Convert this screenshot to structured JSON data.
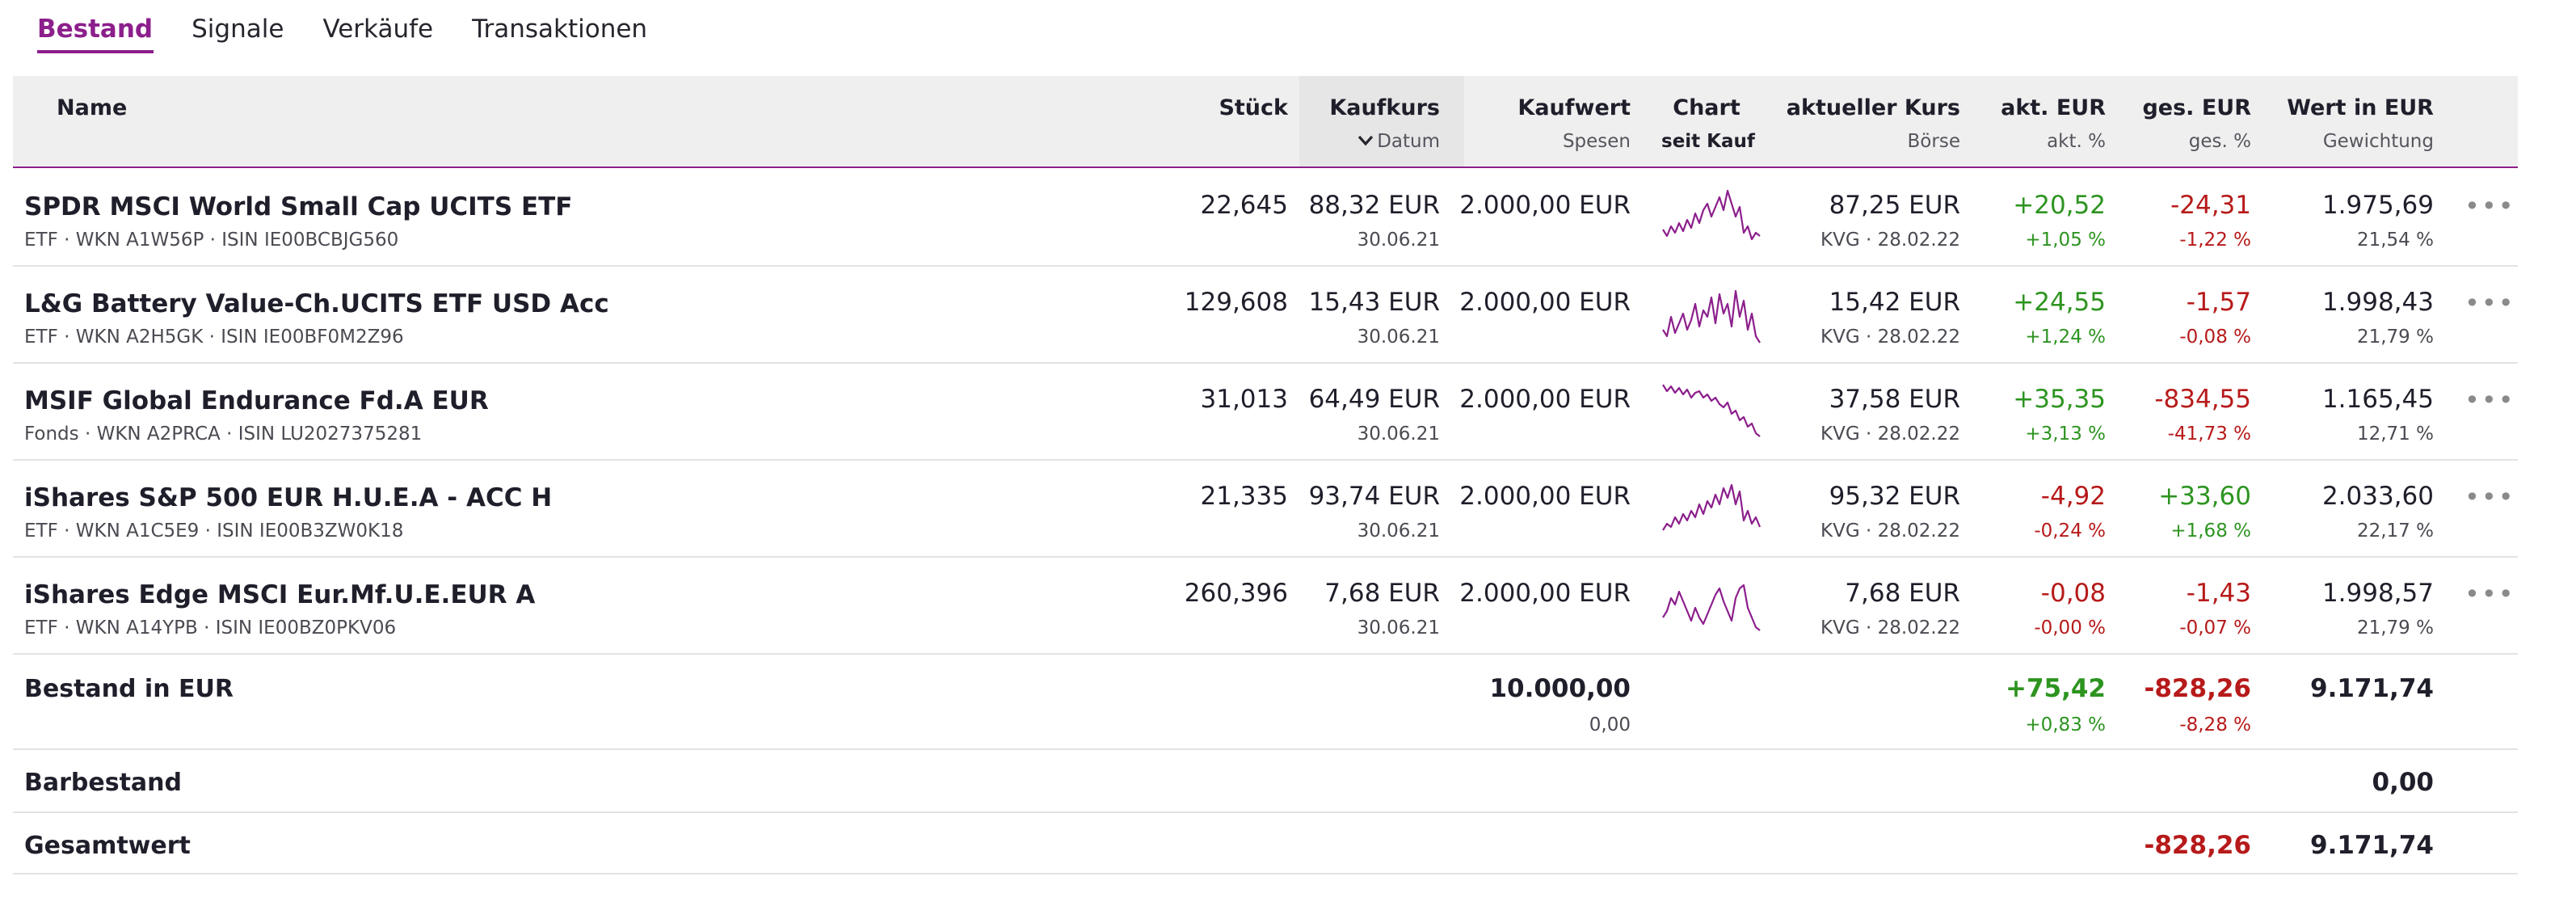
{
  "tabs": [
    {
      "label": "Bestand",
      "active": true
    },
    {
      "label": "Signale",
      "active": false
    },
    {
      "label": "Verkäufe",
      "active": false
    },
    {
      "label": "Transaktionen",
      "active": false
    }
  ],
  "header": {
    "name": "Name",
    "stueck": "Stück",
    "kaufkurs": "Kaufkurs",
    "datum": "Datum",
    "kaufwert": "Kaufwert",
    "spesen": "Spesen",
    "chart": "Chart",
    "seit_kauf": "seit Kauf",
    "aktueller_kurs": "aktueller Kurs",
    "boerse": "Börse",
    "akt_eur": "akt. EUR",
    "akt_pct": "akt. %",
    "ges_eur": "ges. EUR",
    "ges_pct": "ges. %",
    "wert_eur": "Wert in EUR",
    "gewichtung": "Gewichtung"
  },
  "rows": [
    {
      "name": "SPDR MSCI World Small Cap UCITS ETF",
      "sub": "ETF · WKN A1W56P · ISIN IE00BCBJG560",
      "stueck": "22,645",
      "kaufkurs": "88,32 EUR",
      "datum": "30.06.21",
      "kaufwert": "2.000,00 EUR",
      "kurs": "87,25 EUR",
      "boerse": "KVG · 28.02.22",
      "akt_eur": "+20,52",
      "akt_pct": "+1,05 %",
      "ges_eur": "-24,31",
      "ges_pct": "-1,22 %",
      "wert": "1.975,69",
      "gewichtung": "21,54 %",
      "akt_sign": "pos",
      "ges_sign": "neg",
      "spark": [
        28,
        32,
        26,
        30,
        24,
        29,
        22,
        27,
        18,
        24,
        16,
        12,
        20,
        14,
        8,
        16,
        4,
        12,
        20,
        14,
        30,
        26,
        34,
        30,
        32
      ]
    },
    {
      "name": "L&G Battery Value-Ch.UCITS ETF USD Acc",
      "sub": "ETF · WKN A2H5GK · ISIN IE00BF0M2Z96",
      "stueck": "129,608",
      "kaufkurs": "15,43 EUR",
      "datum": "30.06.21",
      "kaufwert": "2.000,00 EUR",
      "kurs": "15,42 EUR",
      "boerse": "KVG · 28.02.22",
      "akt_eur": "+24,55",
      "akt_pct": "+1,24 %",
      "ges_eur": "-1,57",
      "ges_pct": "-0,08 %",
      "wert": "1.998,43",
      "gewichtung": "21,79 %",
      "akt_sign": "pos",
      "ges_sign": "neg",
      "spark": [
        30,
        34,
        22,
        32,
        26,
        20,
        30,
        24,
        14,
        28,
        18,
        22,
        10,
        26,
        8,
        20,
        14,
        28,
        6,
        22,
        12,
        30,
        20,
        34,
        38
      ]
    },
    {
      "name": "MSIF Global Endurance Fd.A EUR",
      "sub": "Fonds · WKN A2PRCA · ISIN LU2027375281",
      "stueck": "31,013",
      "kaufkurs": "64,49 EUR",
      "datum": "30.06.21",
      "kaufwert": "2.000,00 EUR",
      "kurs": "37,58 EUR",
      "boerse": "KVG · 28.02.22",
      "akt_eur": "+35,35",
      "akt_pct": "+3,13 %",
      "ges_eur": "-834,55",
      "ges_pct": "-41,73 %",
      "wert": "1.165,45",
      "gewichtung": "12,71 %",
      "akt_sign": "pos",
      "ges_sign": "neg",
      "spark": [
        4,
        8,
        5,
        9,
        6,
        10,
        7,
        12,
        9,
        8,
        12,
        10,
        14,
        12,
        16,
        18,
        15,
        22,
        20,
        26,
        24,
        30,
        28,
        34,
        36
      ]
    },
    {
      "name": "iShares S&P 500 EUR H.U.E.A - ACC H",
      "sub": "ETF · WKN A1C5E9 · ISIN IE00B3ZW0K18",
      "stueck": "21,335",
      "kaufkurs": "93,74 EUR",
      "datum": "30.06.21",
      "kaufwert": "2.000,00 EUR",
      "kurs": "95,32 EUR",
      "boerse": "KVG · 28.02.22",
      "akt_eur": "-4,92",
      "akt_pct": "-0,24 %",
      "ges_eur": "+33,60",
      "ges_pct": "+1,68 %",
      "wert": "2.033,60",
      "gewichtung": "22,17 %",
      "akt_sign": "neg",
      "ges_sign": "pos",
      "spark": [
        34,
        30,
        32,
        26,
        30,
        24,
        28,
        22,
        26,
        18,
        24,
        16,
        20,
        12,
        18,
        8,
        14,
        6,
        18,
        10,
        28,
        22,
        30,
        26,
        32
      ]
    },
    {
      "name": "iShares Edge MSCI Eur.Mf.U.E.EUR A",
      "sub": "ETF · WKN A14YPB · ISIN IE00BZ0PKV06",
      "stueck": "260,396",
      "kaufkurs": "7,68 EUR",
      "datum": "30.06.21",
      "kaufwert": "2.000,00 EUR",
      "kurs": "7,68 EUR",
      "boerse": "KVG · 28.02.22",
      "akt_eur": "-0,08",
      "akt_pct": "-0,00 %",
      "ges_eur": "-1,43",
      "ges_pct": "-0,07 %",
      "wert": "1.998,57",
      "gewichtung": "21,79 %",
      "akt_sign": "neg",
      "ges_sign": "neg",
      "spark": [
        28,
        24,
        16,
        20,
        12,
        18,
        24,
        30,
        22,
        28,
        32,
        26,
        20,
        14,
        10,
        18,
        24,
        30,
        16,
        10,
        8,
        22,
        28,
        34,
        36
      ]
    }
  ],
  "summary": {
    "bestand_label": "Bestand in EUR",
    "kaufwert": "10.000,00",
    "spesen": "0,00",
    "akt_eur": "+75,42",
    "akt_pct": "+0,83 %",
    "ges_eur": "-828,26",
    "ges_pct": "-8,28 %",
    "wert": "9.171,74",
    "barbestand_label": "Barbestand",
    "barbestand_wert": "0,00",
    "gesamt_label": "Gesamtwert",
    "gesamt_ges_eur": "-828,26",
    "gesamt_wert": "9.171,74"
  },
  "colors": {
    "accent": "#8c1f8c",
    "positive": "#2d9420",
    "negative": "#b71a1a"
  },
  "icons": {
    "sort": "chevron-down-icon",
    "more": "more-horizontal-icon"
  }
}
